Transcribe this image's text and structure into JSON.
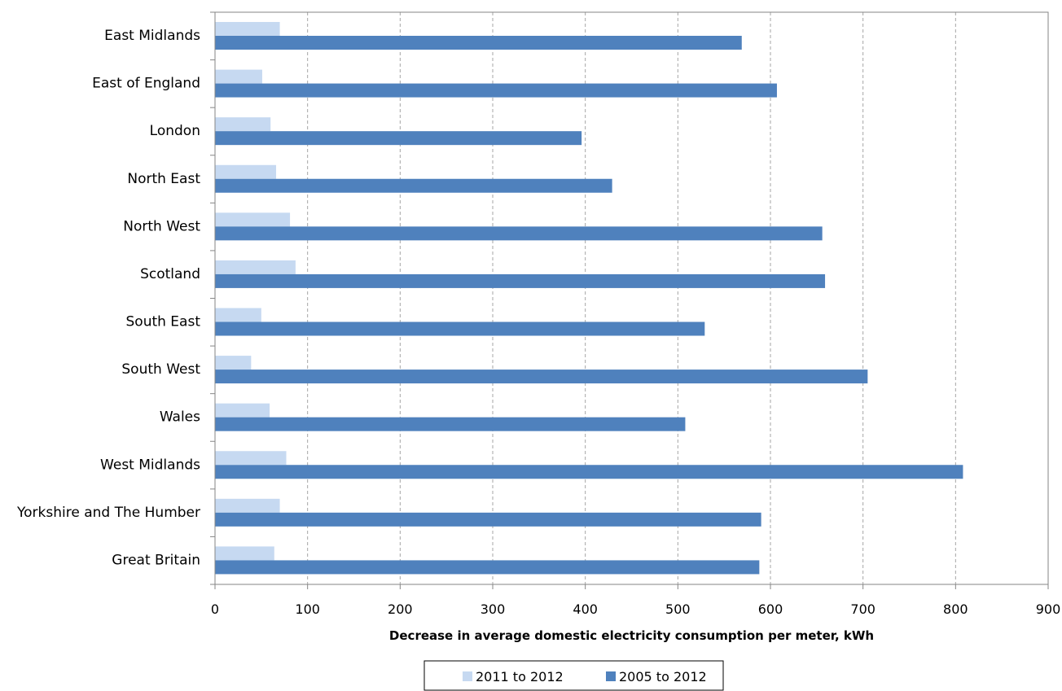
{
  "chart_data": {
    "type": "bar",
    "orientation": "horizontal",
    "categories": [
      "East Midlands",
      "East of England",
      "London",
      "North East",
      "North West",
      "Scotland",
      "South East",
      "South West",
      "Wales",
      "West Midlands",
      "Yorkshire and The Humber",
      "Great Britain"
    ],
    "series": [
      {
        "name": "2011 to 2012",
        "color": "#c6d9f1",
        "values": [
          70,
          51,
          60,
          66,
          81,
          87,
          50,
          39,
          59,
          77,
          70,
          64
        ]
      },
      {
        "name": "2005 to 2012",
        "color": "#4f81bd",
        "values": [
          569,
          607,
          396,
          429,
          656,
          659,
          529,
          705,
          508,
          808,
          590,
          588
        ]
      }
    ],
    "xlabel": "Decrease in average domestic electricity consumption per meter, kWh",
    "ylabel": "",
    "xlim": [
      0,
      900
    ],
    "xticks": [
      "0",
      "100",
      "200",
      "300",
      "400",
      "500",
      "600",
      "700",
      "800",
      "900"
    ],
    "grid": "vertical dashed",
    "legend_position": "bottom"
  }
}
